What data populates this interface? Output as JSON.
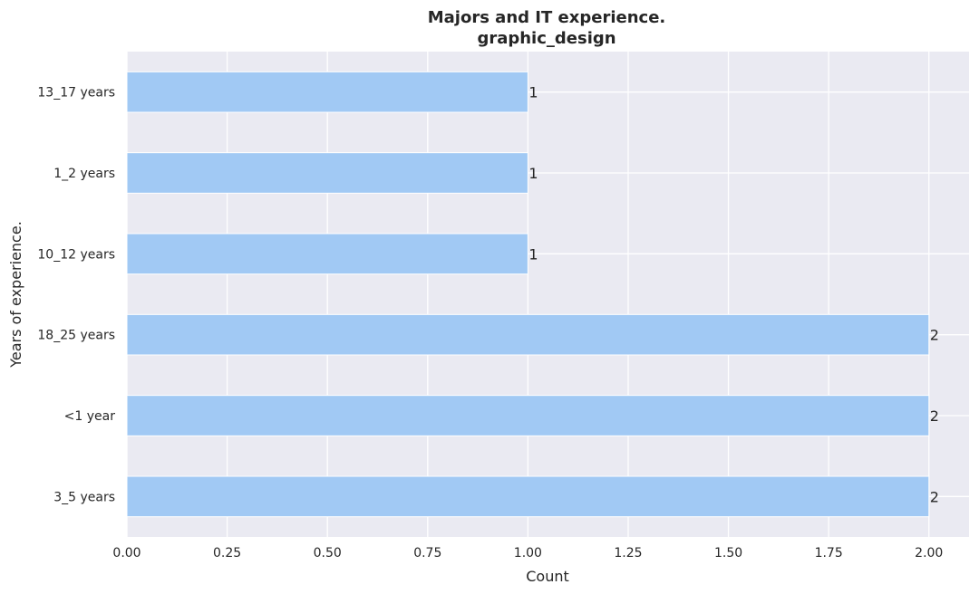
{
  "chart_data": {
    "type": "bar",
    "orientation": "horizontal",
    "title": "Majors and IT experience.",
    "subtitle": "graphic_design",
    "xlabel": "Count",
    "ylabel": "Years of experience.",
    "categories": [
      "13_17 years",
      "1_2 years",
      "10_12 years",
      "18_25 years",
      "<1 year",
      "3_5 years"
    ],
    "values": [
      1,
      1,
      1,
      2,
      2,
      2
    ],
    "data_labels": [
      "1",
      "1",
      "1",
      "2",
      "2",
      "2"
    ],
    "xlim": [
      0,
      2.1
    ],
    "xticks": [
      0,
      0.25,
      0.5,
      0.75,
      1.0,
      1.25,
      1.5,
      1.75,
      2.0
    ],
    "xtick_labels": [
      "0.00",
      "0.25",
      "0.50",
      "0.75",
      "1.00",
      "1.25",
      "1.50",
      "1.75",
      "2.00"
    ],
    "grid": true,
    "colors": {
      "bar": "#a1c9f4",
      "plot_background": "#eaeaf2",
      "grid": "#ffffff",
      "text": "#262626"
    }
  }
}
